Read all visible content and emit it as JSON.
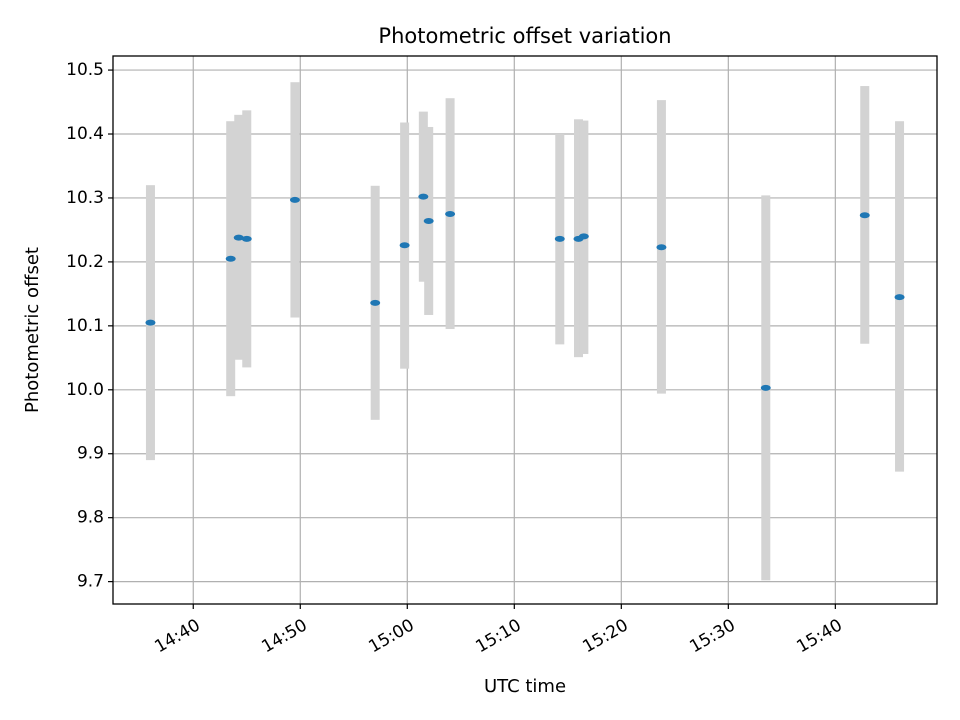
{
  "chart_data": {
    "type": "scatter",
    "title": "Photometric offset variation",
    "xlabel": "UTC time",
    "ylabel": "Photometric offset",
    "xlim": [
      "14:32:30",
      "15:49:30"
    ],
    "ylim": [
      9.665,
      10.522
    ],
    "x_ticks": [
      "14:40",
      "14:50",
      "15:00",
      "15:10",
      "15:20",
      "15:30",
      "15:40"
    ],
    "y_ticks": [
      9.7,
      9.8,
      9.9,
      10.0,
      10.1,
      10.2,
      10.3,
      10.4,
      10.5
    ],
    "grid": true,
    "colors": {
      "point": "#1f77b4",
      "errorbar": "#d3d3d3",
      "grid": "#b0b0b0"
    },
    "points": [
      {
        "time": "14:36:00",
        "y": 10.105,
        "ylow": 9.89,
        "yhigh": 10.32
      },
      {
        "time": "14:43:30",
        "y": 10.205,
        "ylow": 9.99,
        "yhigh": 10.42
      },
      {
        "time": "14:44:15",
        "y": 10.238,
        "ylow": 10.047,
        "yhigh": 10.43
      },
      {
        "time": "14:45:00",
        "y": 10.236,
        "ylow": 10.035,
        "yhigh": 10.437
      },
      {
        "time": "14:49:30",
        "y": 10.297,
        "ylow": 10.113,
        "yhigh": 10.481
      },
      {
        "time": "14:57:00",
        "y": 10.136,
        "ylow": 9.953,
        "yhigh": 10.319
      },
      {
        "time": "14:59:45",
        "y": 10.226,
        "ylow": 10.033,
        "yhigh": 10.418
      },
      {
        "time": "15:01:30",
        "y": 10.302,
        "ylow": 10.169,
        "yhigh": 10.435
      },
      {
        "time": "15:02:00",
        "y": 10.264,
        "ylow": 10.117,
        "yhigh": 10.411
      },
      {
        "time": "15:04:00",
        "y": 10.275,
        "ylow": 10.095,
        "yhigh": 10.456
      },
      {
        "time": "15:14:15",
        "y": 10.236,
        "ylow": 10.071,
        "yhigh": 10.4
      },
      {
        "time": "15:16:00",
        "y": 10.236,
        "ylow": 10.051,
        "yhigh": 10.423
      },
      {
        "time": "15:16:30",
        "y": 10.24,
        "ylow": 10.056,
        "yhigh": 10.421
      },
      {
        "time": "15:23:45",
        "y": 10.223,
        "ylow": 9.994,
        "yhigh": 10.453
      },
      {
        "time": "15:33:30",
        "y": 10.003,
        "ylow": 9.702,
        "yhigh": 10.304
      },
      {
        "time": "15:42:45",
        "y": 10.273,
        "ylow": 10.072,
        "yhigh": 10.475
      },
      {
        "time": "15:46:00",
        "y": 10.145,
        "ylow": 9.872,
        "yhigh": 10.42
      }
    ]
  }
}
